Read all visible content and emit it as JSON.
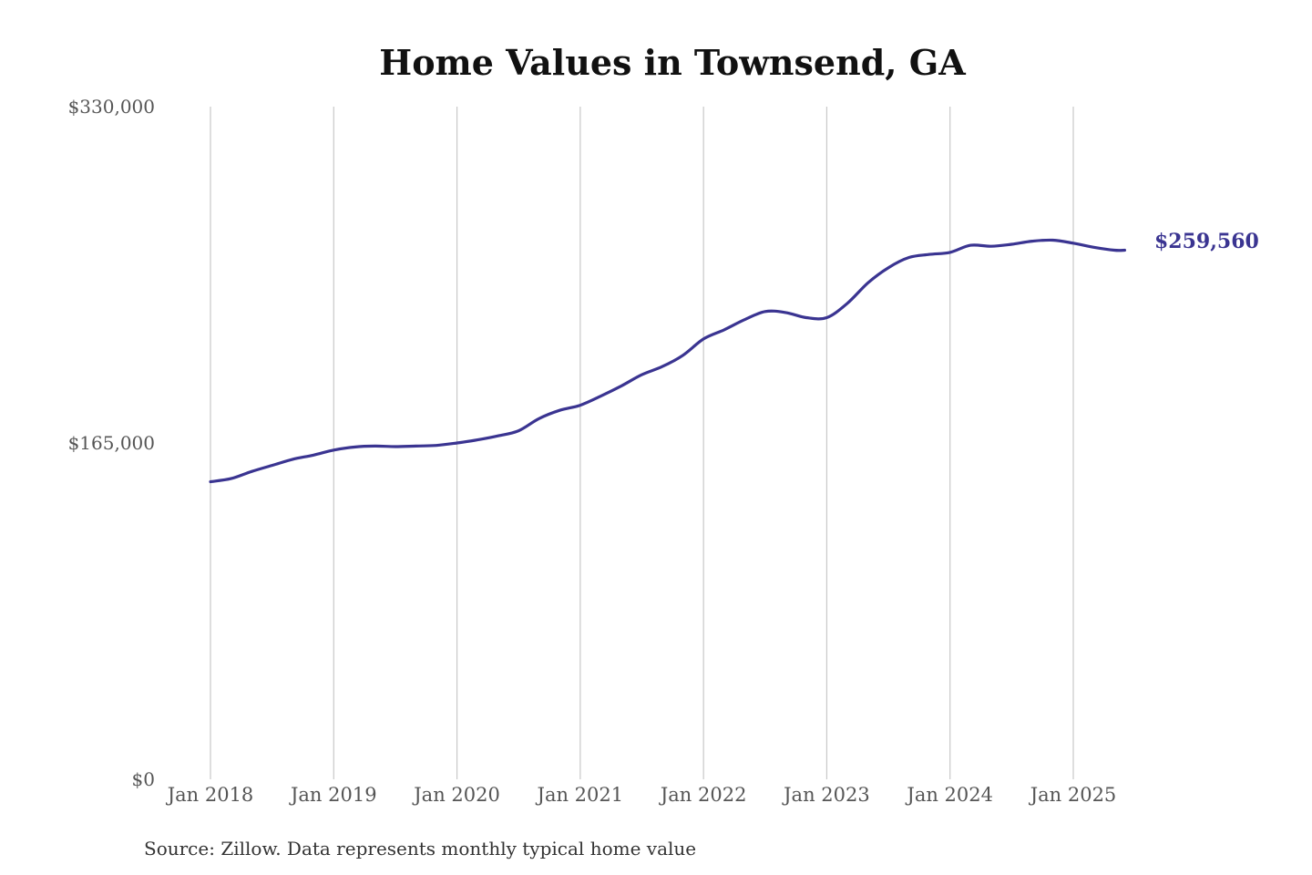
{
  "chart_data": {
    "type": "line",
    "title": "Home Values in Townsend, GA",
    "xlabel": "",
    "ylabel": "",
    "source": "Source: Zillow. Data represents monthly typical home value",
    "ylim": [
      0,
      330000
    ],
    "y_ticks": [
      {
        "value": 0,
        "label": "$0"
      },
      {
        "value": 165000,
        "label": "$165,000"
      },
      {
        "value": 330000,
        "label": "$330,000"
      }
    ],
    "x_ticks": [
      {
        "value": "2018-01",
        "label": "Jan 2018"
      },
      {
        "value": "2019-01",
        "label": "Jan 2019"
      },
      {
        "value": "2020-01",
        "label": "Jan 2020"
      },
      {
        "value": "2021-01",
        "label": "Jan 2021"
      },
      {
        "value": "2022-01",
        "label": "Jan 2022"
      },
      {
        "value": "2023-01",
        "label": "Jan 2023"
      },
      {
        "value": "2024-01",
        "label": "Jan 2024"
      },
      {
        "value": "2025-01",
        "label": "Jan 2025"
      }
    ],
    "grid": "vertical",
    "line_color": "#3a3491",
    "end_label": "$259,560",
    "series": [
      {
        "x": [
          "2018-01",
          "2018-03",
          "2018-05",
          "2018-07",
          "2018-09",
          "2018-11",
          "2019-01",
          "2019-03",
          "2019-05",
          "2019-07",
          "2019-09",
          "2019-11",
          "2020-01",
          "2020-03",
          "2020-05",
          "2020-07",
          "2020-09",
          "2020-11",
          "2021-01",
          "2021-03",
          "2021-05",
          "2021-07",
          "2021-09",
          "2021-11",
          "2022-01",
          "2022-03",
          "2022-05",
          "2022-07",
          "2022-09",
          "2022-11",
          "2023-01",
          "2023-03",
          "2023-05",
          "2023-07",
          "2023-09",
          "2023-11",
          "2024-01",
          "2024-03",
          "2024-05",
          "2024-07",
          "2024-09",
          "2024-11",
          "2025-01",
          "2025-03",
          "2025-05",
          "2025-06"
        ],
        "y": [
          146000,
          147500,
          151000,
          154000,
          157000,
          159000,
          161500,
          163000,
          163500,
          163200,
          163500,
          163800,
          165000,
          166500,
          168500,
          171000,
          177000,
          181000,
          183500,
          188000,
          193000,
          198500,
          202500,
          208000,
          216000,
          220500,
          225500,
          229500,
          229000,
          226500,
          226500,
          233500,
          243500,
          251000,
          256000,
          257500,
          258500,
          262000,
          261500,
          262500,
          264000,
          264500,
          263000,
          261000,
          259560,
          259560
        ]
      }
    ]
  }
}
